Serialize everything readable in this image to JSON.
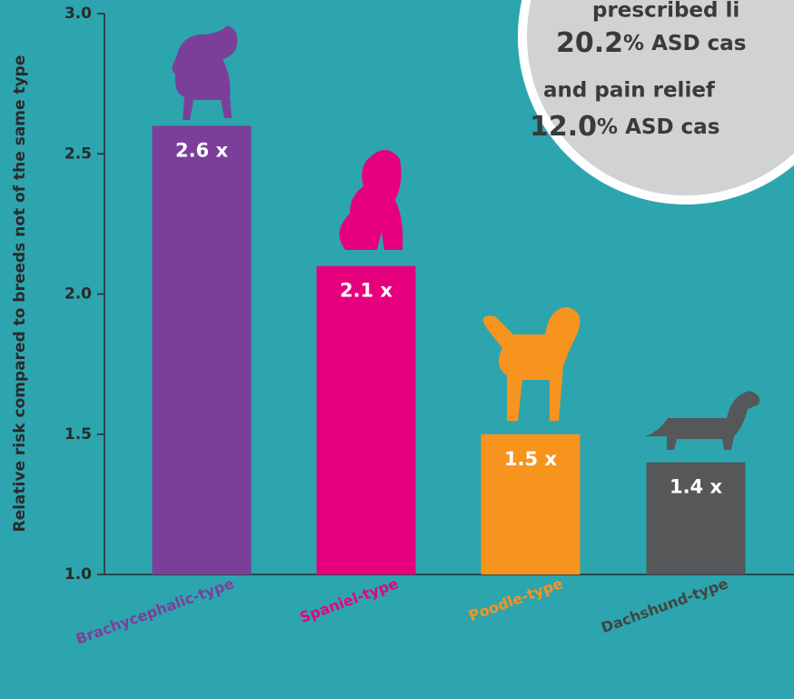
{
  "chart_data": {
    "type": "bar",
    "y_label": "Relative risk compared to breeds not of the same type",
    "annotations": [
      "prescribed li",
      "20.2",
      "% ASD cas",
      "and pain relief",
      "12.0",
      "% ASD cas"
    ],
    "categories": [
      "Brachycephalic-type",
      "Spaniel-type",
      "Poodle-type",
      "Dachshund-type"
    ],
    "values": [
      2.6,
      2.1,
      1.5,
      1.4
    ],
    "value_labels": [
      "2.6 x",
      "2.1 x",
      "1.5 x",
      "1.4 x"
    ],
    "colors": [
      "#7b3f99",
      "#e6007e",
      "#f7941d",
      "#555759"
    ],
    "ylim": [
      1,
      3
    ],
    "yticks": [
      {
        "value": 1,
        "label": "1.0"
      },
      1.5,
      {
        "value": 2,
        "label": "2.0"
      },
      2.5,
      {
        "value": 3,
        "label": "3.0"
      }
    ],
    "grid": false
  }
}
